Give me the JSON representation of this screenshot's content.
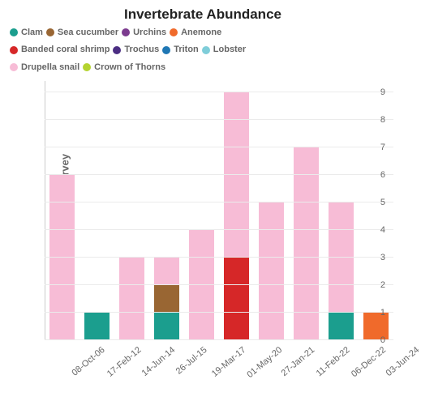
{
  "chart": {
    "type": "stacked-bar",
    "title": "Invertebrate Abundance",
    "title_fontsize": 17,
    "title_color": "#222222",
    "ylabel": "Abundance per survey",
    "label_fontsize": 13,
    "label_color": "#666666",
    "background_color": "#ffffff",
    "grid_color": "#ebebeb",
    "axis_color": "#cccccc",
    "tick_fontsize": 11,
    "tick_color": "#666666",
    "ylim": [
      0,
      9.4
    ],
    "ytick_step": 1,
    "yticks": [
      0,
      1,
      2,
      3,
      4,
      5,
      6,
      7,
      8,
      9
    ],
    "bar_width": 0.72,
    "legend": {
      "fontsize": 11,
      "rows": [
        [
          "Clam",
          "Sea cucumber",
          "Urchins",
          "Anemone"
        ],
        [
          "Banded coral shrimp",
          "Trochus",
          "Triton",
          "Lobster"
        ],
        [
          "Drupella snail",
          "Crown of Thorns"
        ]
      ]
    },
    "series": {
      "Clam": "#1b9e8e",
      "Sea cucumber": "#996633",
      "Urchins": "#7c3b8f",
      "Anemone": "#f06a2b",
      "Banded coral shrimp": "#d62728",
      "Trochus": "#4b2e83",
      "Triton": "#1f77b4",
      "Lobster": "#7fcdd9",
      "Drupella snail": "#f7bcd6",
      "Crown of Thorns": "#b4d330"
    },
    "categories": [
      "08-Oct-06",
      "17-Feb-12",
      "14-Jun-14",
      "26-Jul-15",
      "19-Mar-17",
      "01-May-20",
      "27-Jan-21",
      "11-Feb-22",
      "06-Dec-22",
      "03-Jun-24"
    ],
    "stacks": [
      [
        {
          "series": "Drupella snail",
          "value": 6
        }
      ],
      [
        {
          "series": "Clam",
          "value": 1
        }
      ],
      [
        {
          "series": "Drupella snail",
          "value": 3
        }
      ],
      [
        {
          "series": "Clam",
          "value": 1
        },
        {
          "series": "Sea cucumber",
          "value": 1
        },
        {
          "series": "Drupella snail",
          "value": 1
        }
      ],
      [
        {
          "series": "Drupella snail",
          "value": 4
        }
      ],
      [
        {
          "series": "Banded coral shrimp",
          "value": 3
        },
        {
          "series": "Drupella snail",
          "value": 6
        }
      ],
      [
        {
          "series": "Drupella snail",
          "value": 5
        }
      ],
      [
        {
          "series": "Drupella snail",
          "value": 7
        }
      ],
      [
        {
          "series": "Clam",
          "value": 1
        },
        {
          "series": "Drupella snail",
          "value": 4
        }
      ],
      [
        {
          "series": "Anemone",
          "value": 1
        }
      ]
    ]
  }
}
